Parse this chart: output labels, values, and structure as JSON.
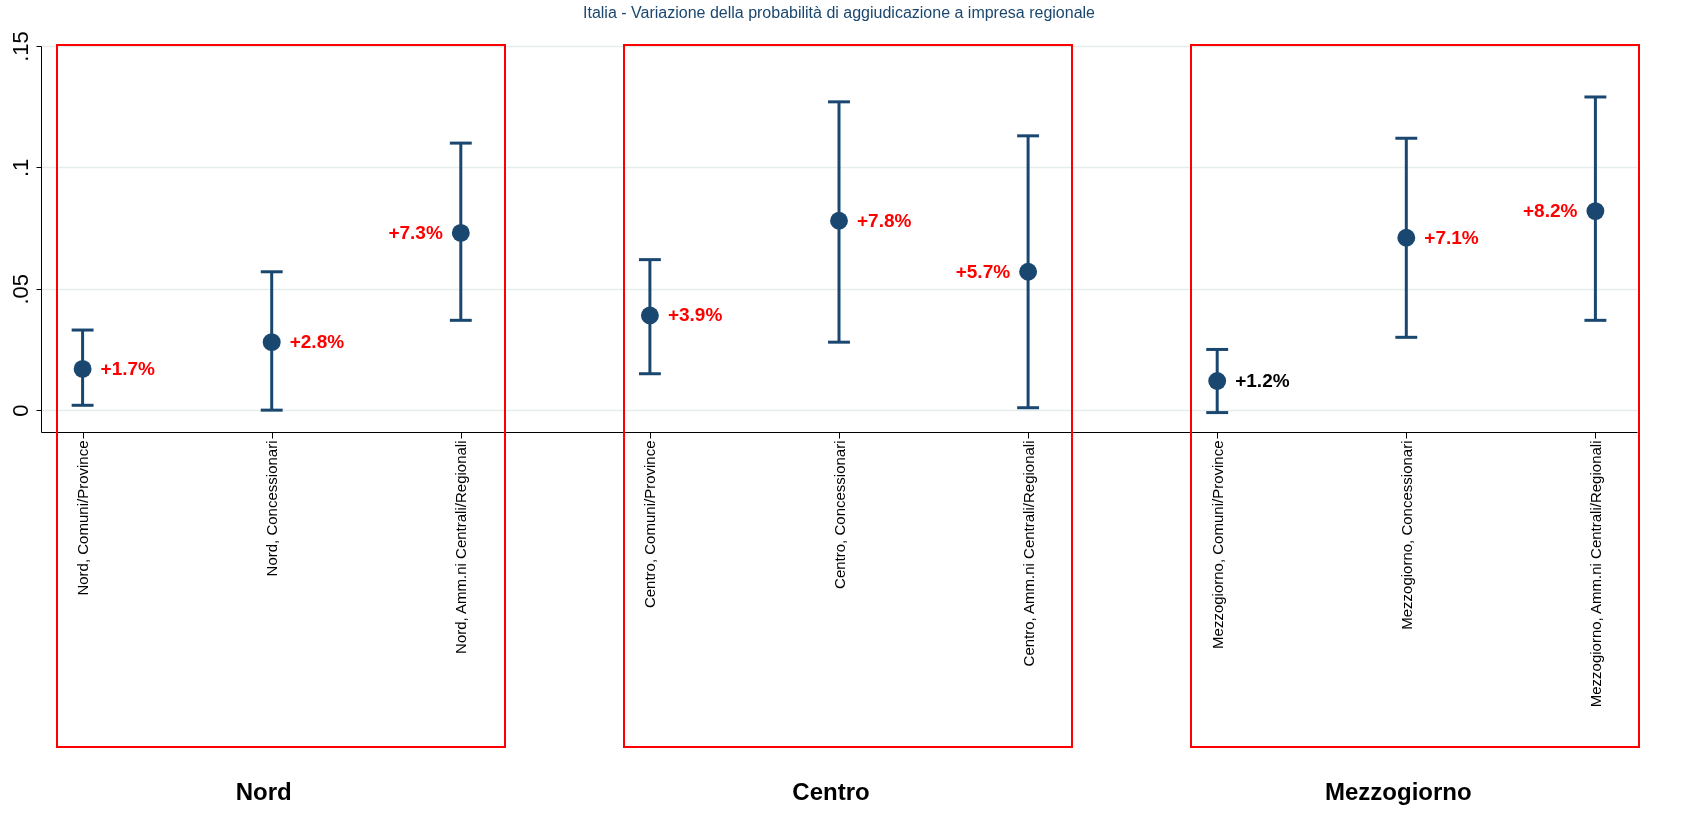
{
  "chart_data": {
    "type": "scatter",
    "title": "Italia - Variazione della probabilità di aggiudicazione a impresa regionale",
    "categories": [
      "Nord, Comuni/Province",
      "Nord, Concessionari",
      "Nord, Amm.ni Centrali/Regionali",
      "Centro, Comuni/Province",
      "Centro, Concessionari",
      "Centro, Amm.ni Centrali/Regionali",
      "Mezzogiorno, Comuni/Province",
      "Mezzogiorno, Concessionari",
      "Mezzogiorno, Amm.ni Centrali/Regionali"
    ],
    "series": [
      {
        "color": "#1a476f",
        "values": [
          0.017,
          0.028,
          0.073,
          0.039,
          0.078,
          0.057,
          0.012,
          0.071,
          0.082
        ],
        "errors": [
          [
            0.002,
            0.033
          ],
          [
            0.0,
            0.057
          ],
          [
            0.037,
            0.11
          ],
          [
            0.015,
            0.062
          ],
          [
            0.028,
            0.127
          ],
          [
            0.001,
            0.113
          ],
          [
            -0.001,
            0.025
          ],
          [
            0.03,
            0.112
          ],
          [
            0.037,
            0.129
          ]
        ],
        "value_labels": [
          "+1.7%",
          "+2.8%",
          "+7.3%",
          "+3.9%",
          "+7.8%",
          "+5.7%",
          "+1.2%",
          "+7.1%",
          "+8.2%"
        ]
      }
    ],
    "ylim": [
      -0.009,
      0.15
    ],
    "yticks": [
      0,
      {
        "value": 0.05,
        "label": ".05"
      },
      {
        "value": 0.1,
        "label": ".1"
      },
      {
        "value": 0.15,
        "label": ".15"
      }
    ],
    "grid": "y",
    "marker": "circle",
    "annotations": [
      "Nord",
      "Centro",
      "Mezzogiorno"
    ]
  }
}
